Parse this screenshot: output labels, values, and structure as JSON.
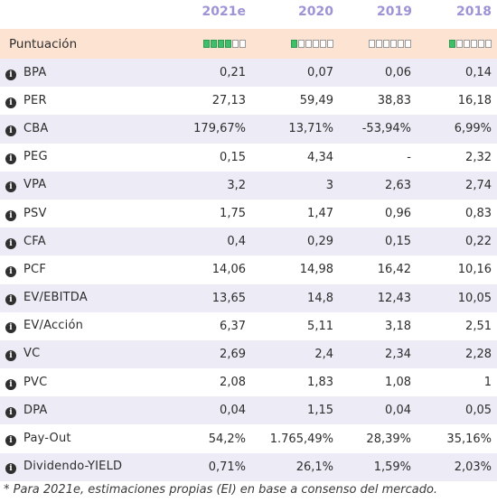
{
  "columns": [
    "2021e",
    "2020",
    "2019",
    "2018"
  ],
  "score_row": {
    "label": "Puntuación",
    "scores": [
      4,
      1,
      0,
      1
    ],
    "segments": 6
  },
  "rows": [
    {
      "label": "BPA",
      "values": [
        "0,21",
        "0,07",
        "0,06",
        "0,14"
      ]
    },
    {
      "label": "PER",
      "values": [
        "27,13",
        "59,49",
        "38,83",
        "16,18"
      ]
    },
    {
      "label": "CBA",
      "values": [
        "179,67%",
        "13,71%",
        "-53,94%",
        "6,99%"
      ]
    },
    {
      "label": "PEG",
      "values": [
        "0,15",
        "4,34",
        "-",
        "2,32"
      ]
    },
    {
      "label": "VPA",
      "values": [
        "3,2",
        "3",
        "2,63",
        "2,74"
      ]
    },
    {
      "label": "PSV",
      "values": [
        "1,75",
        "1,47",
        "0,96",
        "0,83"
      ]
    },
    {
      "label": "CFA",
      "values": [
        "0,4",
        "0,29",
        "0,15",
        "0,22"
      ]
    },
    {
      "label": "PCF",
      "values": [
        "14,06",
        "14,98",
        "16,42",
        "10,16"
      ]
    },
    {
      "label": "EV/EBITDA",
      "values": [
        "13,65",
        "14,8",
        "12,43",
        "10,05"
      ]
    },
    {
      "label": "EV/Acción",
      "values": [
        "6,37",
        "5,11",
        "3,18",
        "2,51"
      ]
    },
    {
      "label": "VC",
      "values": [
        "2,69",
        "2,4",
        "2,34",
        "2,28"
      ]
    },
    {
      "label": "PVC",
      "values": [
        "2,08",
        "1,83",
        "1,08",
        "1"
      ]
    },
    {
      "label": "DPA",
      "values": [
        "0,04",
        "1,15",
        "0,04",
        "0,05"
      ]
    },
    {
      "label": "Pay-Out",
      "values": [
        "54,2%",
        "1.765,49%",
        "28,39%",
        "35,16%"
      ]
    },
    {
      "label": "Dividendo-YIELD",
      "values": [
        "0,71%",
        "26,1%",
        "1,59%",
        "2,03%"
      ]
    }
  ],
  "info_icon_glyph": "i",
  "footnote": "* Para 2021e, estimaciones propias (EI) en base a consenso del mercado.",
  "colors": {
    "header_text": "#9d94d6",
    "score_row_bg": "#fde3d2",
    "alt_row_bg": "#ecebf6",
    "bar_on": "#3fbf6a"
  }
}
